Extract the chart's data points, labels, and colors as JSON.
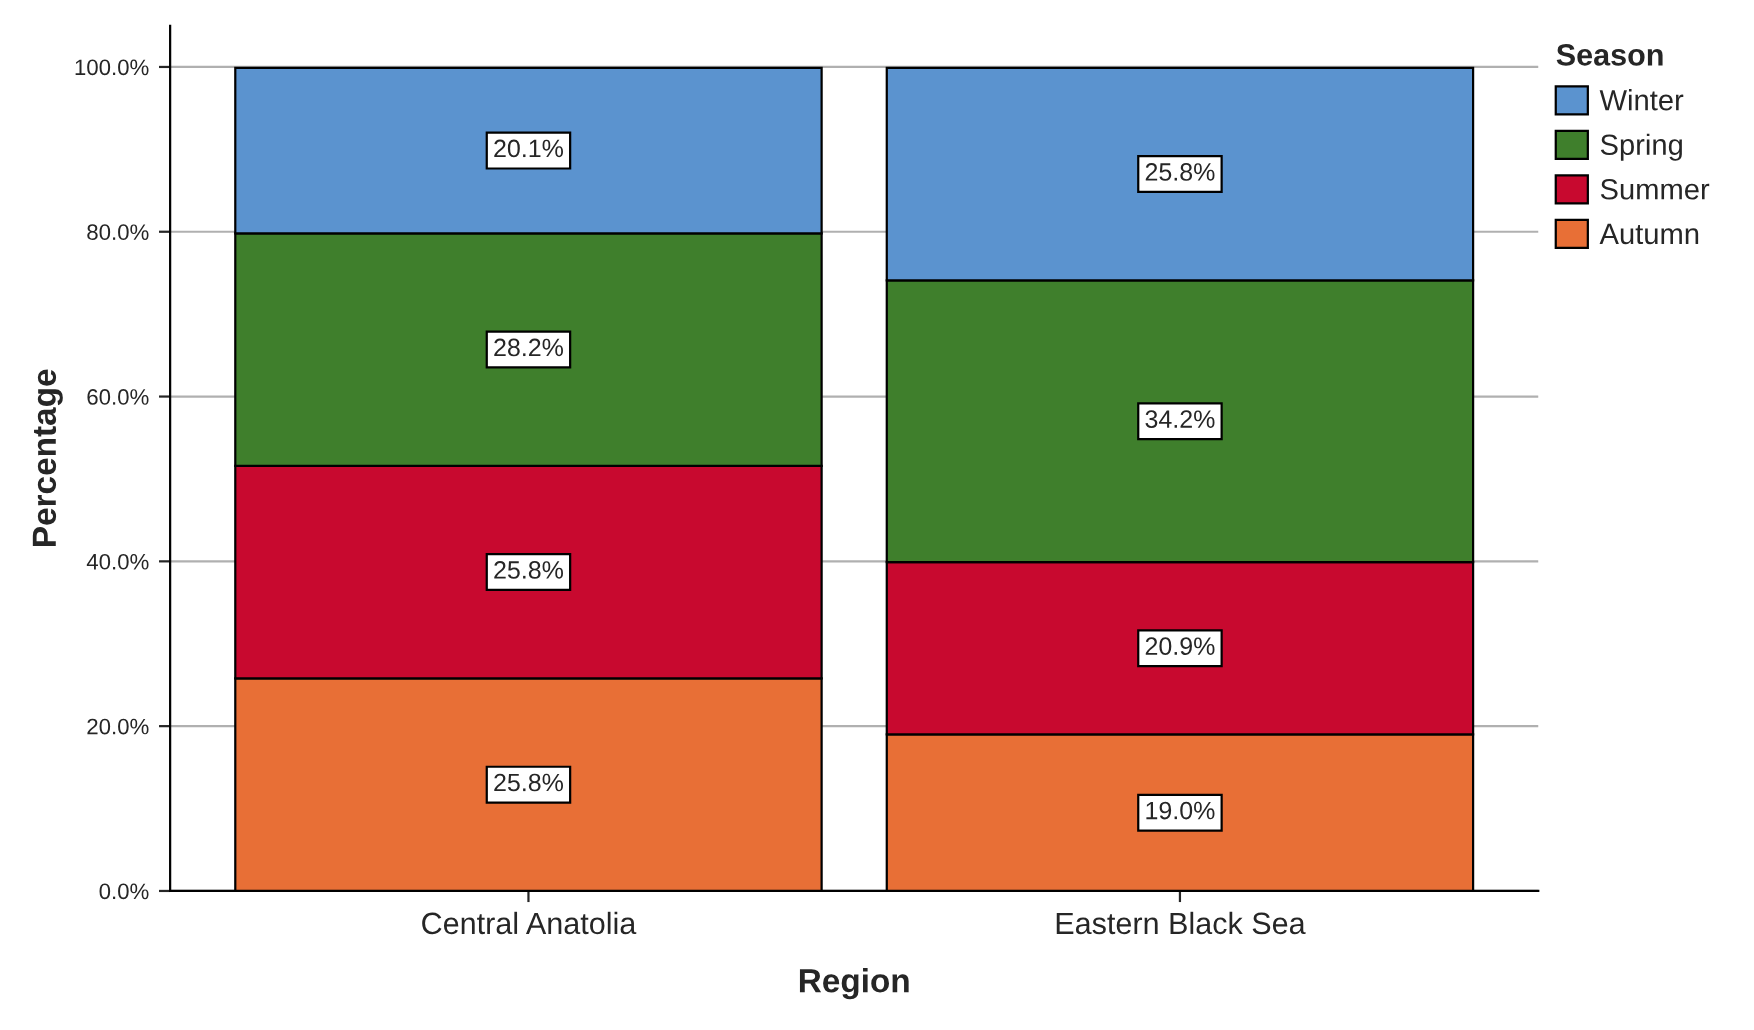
{
  "chart_data": {
    "type": "bar",
    "stacked": true,
    "xlabel": "Region",
    "ylabel": "Percentage",
    "legend_title": "Season",
    "legend": "top right",
    "grid": "y",
    "categories": [
      "Central Anatolia",
      "Eastern Black Sea"
    ],
    "ylim": [
      0,
      105
    ],
    "yticks": [
      {
        "value": 0,
        "label": "0.0%"
      },
      {
        "value": 20,
        "label": "20.0%"
      },
      {
        "value": 40,
        "label": "40.0%"
      },
      {
        "value": 60,
        "label": "60.0%"
      },
      {
        "value": 80,
        "label": "80.0%"
      },
      {
        "value": 100,
        "label": "100.0%"
      }
    ],
    "series": [
      {
        "name": "Autumn",
        "color": "#e86f36",
        "values": [
          25.8,
          19.0
        ],
        "value_labels": [
          "25.8%",
          "19.0%"
        ]
      },
      {
        "name": "Summer",
        "color": "#c8092f",
        "values": [
          25.8,
          20.9
        ],
        "value_labels": [
          "25.8%",
          "20.9%"
        ]
      },
      {
        "name": "Spring",
        "color": "#3f7f2c",
        "values": [
          28.2,
          34.2
        ],
        "value_labels": [
          "28.2%",
          "34.2%"
        ]
      },
      {
        "name": "Winter",
        "color": "#5b93cf",
        "values": [
          20.1,
          25.8
        ],
        "value_labels": [
          "20.1%",
          "25.8%"
        ]
      }
    ]
  }
}
